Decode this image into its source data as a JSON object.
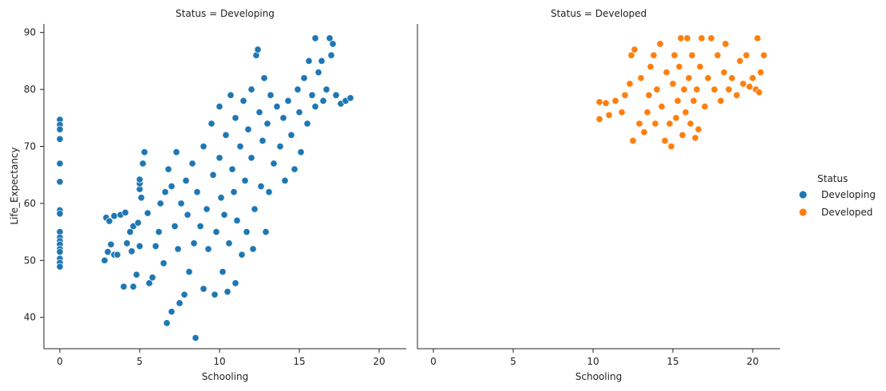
{
  "chart_data": {
    "type": "scatter",
    "facet_variable": "Status",
    "x_label": "Schooling",
    "y_label": "Life_Expectancy",
    "xlim": [
      -1,
      21.7
    ],
    "ylim": [
      34.5,
      91.5
    ],
    "x_ticks": [
      0,
      5,
      10,
      15,
      20
    ],
    "y_ticks": [
      40,
      50,
      60,
      70,
      80,
      90
    ],
    "legend": {
      "title": "Status",
      "placement": "right",
      "entries": [
        "Developing",
        "Developed"
      ]
    },
    "colors": {
      "Developing": "#1f77b4",
      "Developed": "#ff7f0e"
    },
    "panels": [
      {
        "title": "Status = Developing",
        "series": "Developing",
        "points": [
          [
            0,
            74.7
          ],
          [
            0,
            73.8
          ],
          [
            0,
            73
          ],
          [
            0,
            71.3
          ],
          [
            0,
            67
          ],
          [
            0,
            63.8
          ],
          [
            0,
            58.8
          ],
          [
            0,
            58.2
          ],
          [
            0,
            55
          ],
          [
            0,
            54
          ],
          [
            0,
            53.4
          ],
          [
            0,
            52.8
          ],
          [
            0,
            52
          ],
          [
            0,
            51.5
          ],
          [
            0,
            50.3
          ],
          [
            0,
            49.6
          ],
          [
            0,
            48.9
          ],
          [
            2.8,
            50
          ],
          [
            2.9,
            57.5
          ],
          [
            3,
            51.5
          ],
          [
            3.1,
            56.9
          ],
          [
            3.2,
            52.8
          ],
          [
            3.4,
            51
          ],
          [
            3.4,
            57.8
          ],
          [
            3.6,
            51
          ],
          [
            3.8,
            58
          ],
          [
            4,
            45.4
          ],
          [
            4.1,
            58.4
          ],
          [
            4.2,
            53
          ],
          [
            4.4,
            55
          ],
          [
            4.5,
            51.6
          ],
          [
            4.6,
            56
          ],
          [
            4.6,
            45.4
          ],
          [
            4.8,
            47.5
          ],
          [
            4.9,
            56.6
          ],
          [
            5,
            52.5
          ],
          [
            5,
            62.5
          ],
          [
            5,
            63.5
          ],
          [
            5,
            64.2
          ],
          [
            5.1,
            61
          ],
          [
            5.2,
            67
          ],
          [
            5.3,
            69
          ],
          [
            5.5,
            58.3
          ],
          [
            5.6,
            46
          ],
          [
            5.8,
            47
          ],
          [
            6,
            52.5
          ],
          [
            6.2,
            55
          ],
          [
            6.3,
            60
          ],
          [
            6.5,
            49.5
          ],
          [
            6.6,
            62
          ],
          [
            6.7,
            39
          ],
          [
            6.8,
            66
          ],
          [
            7,
            41
          ],
          [
            7,
            63
          ],
          [
            7.2,
            56
          ],
          [
            7.3,
            69
          ],
          [
            7.4,
            52
          ],
          [
            7.5,
            42.5
          ],
          [
            7.6,
            60
          ],
          [
            7.8,
            44
          ],
          [
            7.9,
            64
          ],
          [
            8,
            58
          ],
          [
            8.1,
            48
          ],
          [
            8.3,
            67
          ],
          [
            8.4,
            53
          ],
          [
            8.5,
            36.4
          ],
          [
            8.6,
            62
          ],
          [
            8.8,
            56
          ],
          [
            9,
            70
          ],
          [
            9,
            45
          ],
          [
            9.2,
            59
          ],
          [
            9.3,
            52
          ],
          [
            9.5,
            74
          ],
          [
            9.6,
            65
          ],
          [
            9.7,
            44
          ],
          [
            9.8,
            55
          ],
          [
            10,
            77
          ],
          [
            10,
            68
          ],
          [
            10.1,
            61
          ],
          [
            10.2,
            48
          ],
          [
            10.3,
            58
          ],
          [
            10.4,
            72
          ],
          [
            10.5,
            44.5
          ],
          [
            10.6,
            53
          ],
          [
            10.7,
            79
          ],
          [
            10.8,
            66
          ],
          [
            10.9,
            62
          ],
          [
            11,
            46
          ],
          [
            11,
            75
          ],
          [
            11.1,
            57
          ],
          [
            11.3,
            70
          ],
          [
            11.4,
            51
          ],
          [
            11.5,
            78
          ],
          [
            11.6,
            64
          ],
          [
            11.7,
            55
          ],
          [
            11.8,
            73
          ],
          [
            12,
            68
          ],
          [
            12,
            80
          ],
          [
            12.1,
            52
          ],
          [
            12.2,
            59
          ],
          [
            12.3,
            86
          ],
          [
            12.4,
            87
          ],
          [
            12.5,
            76
          ],
          [
            12.6,
            63
          ],
          [
            12.7,
            71
          ],
          [
            12.8,
            82
          ],
          [
            12.9,
            55
          ],
          [
            13,
            74
          ],
          [
            13.1,
            62
          ],
          [
            13.2,
            79
          ],
          [
            13.4,
            67
          ],
          [
            13.6,
            77
          ],
          [
            13.8,
            70
          ],
          [
            14,
            75
          ],
          [
            14.1,
            64
          ],
          [
            14.3,
            78
          ],
          [
            14.5,
            72
          ],
          [
            14.7,
            66
          ],
          [
            14.9,
            80
          ],
          [
            15,
            76
          ],
          [
            15.1,
            69
          ],
          [
            15.3,
            82
          ],
          [
            15.5,
            74
          ],
          [
            15.6,
            85
          ],
          [
            15.8,
            79
          ],
          [
            16,
            89
          ],
          [
            16,
            77
          ],
          [
            16.2,
            83
          ],
          [
            16.4,
            85
          ],
          [
            16.5,
            78
          ],
          [
            16.7,
            80
          ],
          [
            16.9,
            89
          ],
          [
            17,
            86
          ],
          [
            17.1,
            88
          ],
          [
            17.3,
            79
          ],
          [
            17.6,
            77.5
          ],
          [
            17.9,
            78
          ],
          [
            18.2,
            78.5
          ]
        ]
      },
      {
        "title": "Status = Developed",
        "series": "Developed",
        "points": [
          [
            10.4,
            77.8
          ],
          [
            10.4,
            74.8
          ],
          [
            10.8,
            77.6
          ],
          [
            11,
            75.5
          ],
          [
            11.4,
            78
          ],
          [
            11.8,
            76
          ],
          [
            12,
            79
          ],
          [
            12.3,
            81
          ],
          [
            12.4,
            86
          ],
          [
            12.5,
            71
          ],
          [
            12.6,
            87
          ],
          [
            12.9,
            74
          ],
          [
            13,
            82
          ],
          [
            13.2,
            72.5
          ],
          [
            13.4,
            76
          ],
          [
            13.5,
            79
          ],
          [
            13.6,
            84
          ],
          [
            13.8,
            86
          ],
          [
            13.9,
            74
          ],
          [
            14,
            80
          ],
          [
            14.2,
            88
          ],
          [
            14.3,
            77
          ],
          [
            14.5,
            71
          ],
          [
            14.6,
            83
          ],
          [
            14.8,
            74
          ],
          [
            14.9,
            70
          ],
          [
            15,
            81
          ],
          [
            15.1,
            86
          ],
          [
            15.2,
            75
          ],
          [
            15.3,
            78
          ],
          [
            15.4,
            84
          ],
          [
            15.5,
            89
          ],
          [
            15.6,
            72
          ],
          [
            15.7,
            80
          ],
          [
            15.8,
            76
          ],
          [
            15.9,
            89
          ],
          [
            16,
            82
          ],
          [
            16.1,
            74
          ],
          [
            16.2,
            86
          ],
          [
            16.3,
            78
          ],
          [
            16.4,
            71.5
          ],
          [
            16.5,
            80
          ],
          [
            16.6,
            73
          ],
          [
            16.7,
            84
          ],
          [
            16.8,
            89
          ],
          [
            17,
            77
          ],
          [
            17.2,
            82
          ],
          [
            17.4,
            89
          ],
          [
            17.6,
            80
          ],
          [
            17.8,
            86
          ],
          [
            18,
            78
          ],
          [
            18.2,
            83
          ],
          [
            18.3,
            88
          ],
          [
            18.5,
            80
          ],
          [
            18.7,
            82
          ],
          [
            19,
            79
          ],
          [
            19.2,
            85
          ],
          [
            19.4,
            81
          ],
          [
            19.6,
            86
          ],
          [
            19.8,
            80.5
          ],
          [
            20,
            82
          ],
          [
            20.2,
            80
          ],
          [
            20.3,
            89
          ],
          [
            20.4,
            79.5
          ],
          [
            20.5,
            83
          ],
          [
            20.7,
            86
          ]
        ]
      }
    ]
  }
}
